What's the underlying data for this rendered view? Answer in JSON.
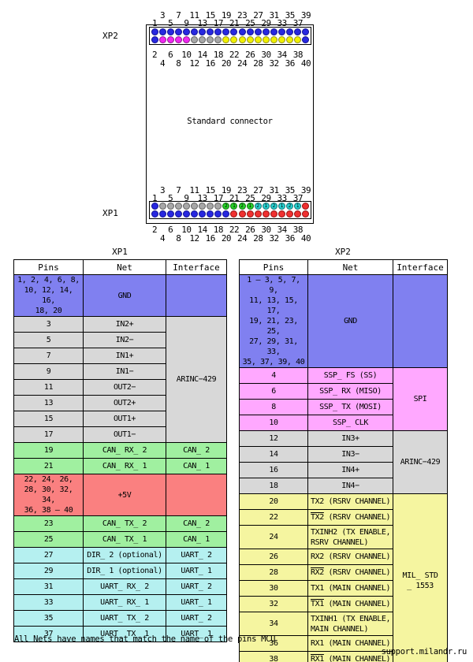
{
  "connector": {
    "label": "Standard connector",
    "pin_colors": {
      "b": {
        "fill": "#2828e0",
        "edge": "#101090"
      },
      "m": {
        "fill": "#f028f0",
        "edge": "#901690"
      },
      "g": {
        "fill": "#a8a8a8",
        "edge": "#606060"
      },
      "y": {
        "fill": "#f0f000",
        "edge": "#90901c"
      },
      "grn": {
        "fill": "#28d028",
        "edge": "#107010"
      },
      "cy": {
        "fill": "#28d0d0",
        "edge": "#107070"
      },
      "r": {
        "fill": "#f03030",
        "edge": "#901010"
      }
    },
    "numbering": {
      "above_upper": [
        "3",
        "7",
        "11",
        "15",
        "19",
        "23",
        "27",
        "31",
        "35",
        "39"
      ],
      "above_lower": [
        "1",
        "5",
        "9",
        "13",
        "17",
        "21",
        "25",
        "29",
        "33",
        "37"
      ],
      "below_upper": [
        "2",
        "6",
        "10",
        "14",
        "18",
        "22",
        "26",
        "30",
        "34",
        "38"
      ],
      "below_lower": [
        "4",
        "8",
        "12",
        "16",
        "20",
        "24",
        "28",
        "32",
        "36",
        "40"
      ]
    },
    "xp2": {
      "label": "XP2",
      "top": [
        {
          "c": "b"
        },
        {
          "c": "b"
        },
        {
          "c": "b"
        },
        {
          "c": "b"
        },
        {
          "c": "b"
        },
        {
          "c": "b"
        },
        {
          "c": "b"
        },
        {
          "c": "b"
        },
        {
          "c": "b"
        },
        {
          "c": "b"
        },
        {
          "c": "b"
        },
        {
          "c": "b"
        },
        {
          "c": "b"
        },
        {
          "c": "b"
        },
        {
          "c": "b"
        },
        {
          "c": "b"
        },
        {
          "c": "b"
        },
        {
          "c": "b"
        },
        {
          "c": "b"
        },
        {
          "c": "b"
        }
      ],
      "bottom": [
        {
          "c": "b"
        },
        {
          "c": "m"
        },
        {
          "c": "m"
        },
        {
          "c": "m"
        },
        {
          "c": "m"
        },
        {
          "c": "g"
        },
        {
          "c": "g"
        },
        {
          "c": "g"
        },
        {
          "c": "g"
        },
        {
          "c": "y"
        },
        {
          "c": "y"
        },
        {
          "c": "y"
        },
        {
          "c": "y"
        },
        {
          "c": "y"
        },
        {
          "c": "y"
        },
        {
          "c": "y"
        },
        {
          "c": "y"
        },
        {
          "c": "y"
        },
        {
          "c": "y"
        },
        {
          "c": "b"
        }
      ]
    },
    "xp1": {
      "label": "XP1",
      "top": [
        {
          "c": "b"
        },
        {
          "c": "g"
        },
        {
          "c": "g"
        },
        {
          "c": "g"
        },
        {
          "c": "g"
        },
        {
          "c": "g"
        },
        {
          "c": "g"
        },
        {
          "c": "g"
        },
        {
          "c": "g"
        },
        {
          "c": "grn",
          "t": "2"
        },
        {
          "c": "grn",
          "t": "1"
        },
        {
          "c": "grn",
          "t": "2"
        },
        {
          "c": "grn",
          "t": "1"
        },
        {
          "c": "cy",
          "t": "2"
        },
        {
          "c": "cy",
          "t": "1"
        },
        {
          "c": "cy",
          "t": "2"
        },
        {
          "c": "cy",
          "t": "1"
        },
        {
          "c": "cy",
          "t": "2"
        },
        {
          "c": "cy",
          "t": "1"
        },
        {
          "c": "r"
        }
      ],
      "bottom": [
        {
          "c": "b"
        },
        {
          "c": "b"
        },
        {
          "c": "b"
        },
        {
          "c": "b"
        },
        {
          "c": "b"
        },
        {
          "c": "b"
        },
        {
          "c": "b"
        },
        {
          "c": "b"
        },
        {
          "c": "b"
        },
        {
          "c": "b"
        },
        {
          "c": "r"
        },
        {
          "c": "r"
        },
        {
          "c": "r"
        },
        {
          "c": "r"
        },
        {
          "c": "r"
        },
        {
          "c": "r"
        },
        {
          "c": "r"
        },
        {
          "c": "r"
        },
        {
          "c": "r"
        },
        {
          "c": "r"
        }
      ]
    }
  },
  "palette": {
    "blue": "#8080f0",
    "gray": "#d8d8d8",
    "green": "#a0f0a0",
    "red": "#fa8080",
    "cyan": "#b5f0f0",
    "pink": "#ffa8ff",
    "yellow": "#f5f5a0"
  },
  "tables": [
    {
      "title": "XP1",
      "headers": [
        "Pins",
        "Net",
        "Interface"
      ],
      "rows": [
        {
          "pins": "1, 2, 4, 6, 8,\n10, 12, 14, 16,\n18, 20",
          "net": "GND",
          "bg": "blue",
          "h": 40,
          "iface": {
            "text": "",
            "span": 1,
            "bg": "blue"
          }
        },
        {
          "pins": "3",
          "net": "IN2+",
          "bg": "gray",
          "iface": {
            "text": "ARINC−429",
            "span": 8,
            "bg": "gray"
          }
        },
        {
          "pins": "5",
          "net": "IN2−",
          "bg": "gray"
        },
        {
          "pins": "7",
          "net": "IN1+",
          "bg": "gray"
        },
        {
          "pins": "9",
          "net": "IN1−",
          "bg": "gray"
        },
        {
          "pins": "11",
          "net": "OUT2−",
          "bg": "gray"
        },
        {
          "pins": "13",
          "net": "OUT2+",
          "bg": "gray"
        },
        {
          "pins": "15",
          "net": "OUT1+",
          "bg": "gray"
        },
        {
          "pins": "17",
          "net": "OUT1−",
          "bg": "gray"
        },
        {
          "pins": "19",
          "net": "CAN_ RX_ 2",
          "bg": "green",
          "iface": {
            "text": "CAN_ 2",
            "span": 1,
            "bg": "green"
          }
        },
        {
          "pins": "21",
          "net": "CAN_ RX_ 1",
          "bg": "green",
          "iface": {
            "text": "CAN_ 1",
            "span": 1,
            "bg": "green"
          }
        },
        {
          "pins": "22, 24, 26,\n28, 30, 32, 34,\n36, 38 – 40",
          "net": "+5V",
          "bg": "red",
          "h": 40,
          "iface": {
            "text": "",
            "span": 1,
            "bg": "red"
          }
        },
        {
          "pins": "23",
          "net": "CAN_ TX_ 2",
          "bg": "green",
          "iface": {
            "text": "CAN_ 2",
            "span": 1,
            "bg": "green"
          }
        },
        {
          "pins": "25",
          "net": "CAN_ TX_ 1",
          "bg": "green",
          "iface": {
            "text": "CAN_ 1",
            "span": 1,
            "bg": "green"
          }
        },
        {
          "pins": "27",
          "net": "DIR_ 2 (optional)",
          "bg": "cyan",
          "iface": {
            "text": "UART_ 2",
            "span": 1,
            "bg": "cyan"
          }
        },
        {
          "pins": "29",
          "net": "DIR_ 1 (optional)",
          "bg": "cyan",
          "iface": {
            "text": "UART_ 1",
            "span": 1,
            "bg": "cyan"
          }
        },
        {
          "pins": "31",
          "net": "UART_ RX_ 2",
          "bg": "cyan",
          "iface": {
            "text": "UART_ 2",
            "span": 1,
            "bg": "cyan"
          }
        },
        {
          "pins": "33",
          "net": "UART_ RX_ 1",
          "bg": "cyan",
          "iface": {
            "text": "UART_ 1",
            "span": 1,
            "bg": "cyan"
          }
        },
        {
          "pins": "35",
          "net": "UART_ TX_ 2",
          "bg": "cyan",
          "iface": {
            "text": "UART_ 2",
            "span": 1,
            "bg": "cyan"
          }
        },
        {
          "pins": "37",
          "net": "UART_ TX_ 1",
          "bg": "cyan",
          "iface": {
            "text": "UART_ 1",
            "span": 1,
            "bg": "cyan"
          }
        }
      ]
    },
    {
      "title": "XP2",
      "headers": [
        "Pins",
        "Net",
        "Interface"
      ],
      "rows": [
        {
          "pins": "1 – 3, 5, 7, 9,\n11, 13, 15, 17,\n19, 21, 23, 25,\n27, 29, 31, 33,\n35, 37, 39, 40",
          "net": "GND",
          "bg": "blue",
          "h": 68,
          "iface": {
            "text": "",
            "span": 1,
            "bg": "blue"
          }
        },
        {
          "pins": "4",
          "net": "SSP_ FS (SS)",
          "bg": "pink",
          "iface": {
            "text": "SPI",
            "span": 4,
            "bg": "pink"
          }
        },
        {
          "pins": "6",
          "net": "SSP_ RX (MISO)",
          "bg": "pink"
        },
        {
          "pins": "8",
          "net": "SSP_ TX (MOSI)",
          "bg": "pink"
        },
        {
          "pins": "10",
          "net": "SSP_ CLK",
          "bg": "pink"
        },
        {
          "pins": "12",
          "net": "IN3+",
          "bg": "gray",
          "iface": {
            "text": "ARINC−429",
            "span": 4,
            "bg": "gray"
          }
        },
        {
          "pins": "14",
          "net": "IN3−",
          "bg": "gray"
        },
        {
          "pins": "16",
          "net": "IN4+",
          "bg": "gray"
        },
        {
          "pins": "18",
          "net": "IN4−",
          "bg": "gray"
        },
        {
          "pins": "20",
          "net": [
            {
              "t": "TX2 (RSRV CHANNEL)"
            }
          ],
          "bg": "yellow",
          "align": "left",
          "iface": {
            "text": "MIL_ STD\n_ 1553",
            "span": 10,
            "bg": "yellow"
          }
        },
        {
          "pins": "22",
          "net": [
            {
              "t": "TX2",
              "ov": true
            },
            {
              "t": " (RSRV CHANNEL)"
            }
          ],
          "bg": "yellow",
          "align": "left"
        },
        {
          "pins": "24",
          "net": [
            {
              "t": "TXINH2 (TX ENABLE,\nRSRV CHANNEL)"
            }
          ],
          "bg": "yellow",
          "align": "left",
          "h": 30
        },
        {
          "pins": "26",
          "net": [
            {
              "t": "RX2 (RSRV CHANNEL)"
            }
          ],
          "bg": "yellow",
          "align": "left"
        },
        {
          "pins": "28",
          "net": [
            {
              "t": "RX2",
              "ov": true
            },
            {
              "t": " (RSRV CHANNEL)"
            }
          ],
          "bg": "yellow",
          "align": "left"
        },
        {
          "pins": "30",
          "net": [
            {
              "t": "TX1 (MAIN CHANNEL)"
            }
          ],
          "bg": "yellow",
          "align": "left"
        },
        {
          "pins": "32",
          "net": [
            {
              "t": "TX1",
              "ov": true
            },
            {
              "t": " (MAIN CHANNEL)"
            }
          ],
          "bg": "yellow",
          "align": "left"
        },
        {
          "pins": "34",
          "net": [
            {
              "t": "TXINH1 (TX ENABLE,\nMAIN CHANNEL)"
            }
          ],
          "bg": "yellow",
          "align": "left",
          "h": 30
        },
        {
          "pins": "36",
          "net": [
            {
              "t": "RX1 (MAIN CHANNEL)"
            }
          ],
          "bg": "yellow",
          "align": "left"
        },
        {
          "pins": "38",
          "net": [
            {
              "t": "RX1",
              "ov": true
            },
            {
              "t": " (MAIN CHANNEL)"
            }
          ],
          "bg": "yellow",
          "align": "left"
        }
      ]
    }
  ],
  "footer": {
    "note": "All Nets have names that match the name of the pins MCU",
    "watermark": "support.milandr.ru"
  }
}
